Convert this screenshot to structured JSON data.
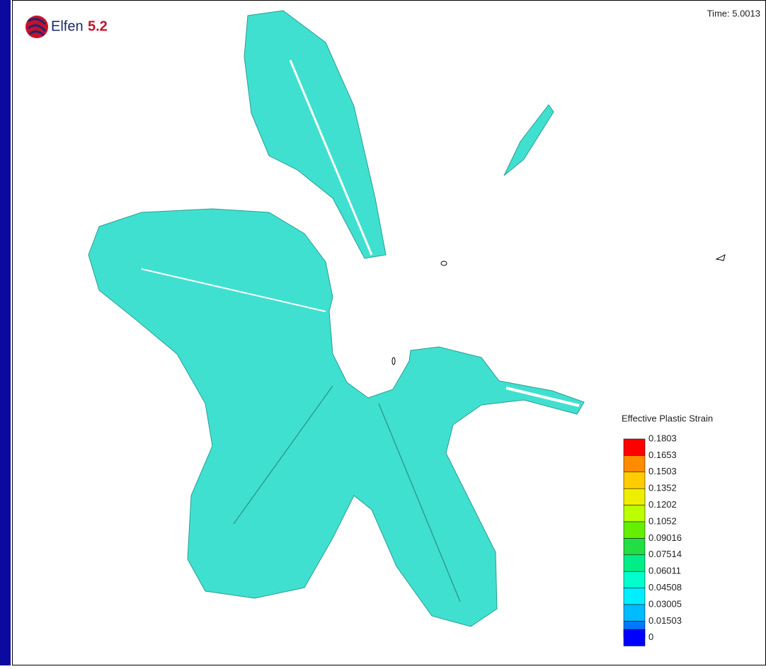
{
  "logo": {
    "name": "Elfen",
    "version": "5.2"
  },
  "time": "Time: 5.0013",
  "legend": {
    "title": "Effective Plastic Strain",
    "entries": [
      {
        "label": 0.1803,
        "color": "#ff0000"
      },
      {
        "label": 0.1653,
        "color": "#ff8c00"
      },
      {
        "label": 0.1503,
        "color": "#ffcc00"
      },
      {
        "label": 0.1352,
        "color": "#eeee00"
      },
      {
        "label": 0.1202,
        "color": "#bbff00"
      },
      {
        "label": 0.1052,
        "color": "#66ee00"
      },
      {
        "label": 0.09016,
        "color": "#22dd44"
      },
      {
        "label": 0.07514,
        "color": "#00ee88"
      },
      {
        "label": 0.06011,
        "color": "#00ffcc"
      },
      {
        "label": 0.04508,
        "color": "#00eeff"
      },
      {
        "label": 0.03005,
        "color": "#00bbff"
      },
      {
        "label": 0.01503,
        "color": "#0077ff"
      },
      {
        "label": 0,
        "color": "#0000ff"
      }
    ]
  }
}
